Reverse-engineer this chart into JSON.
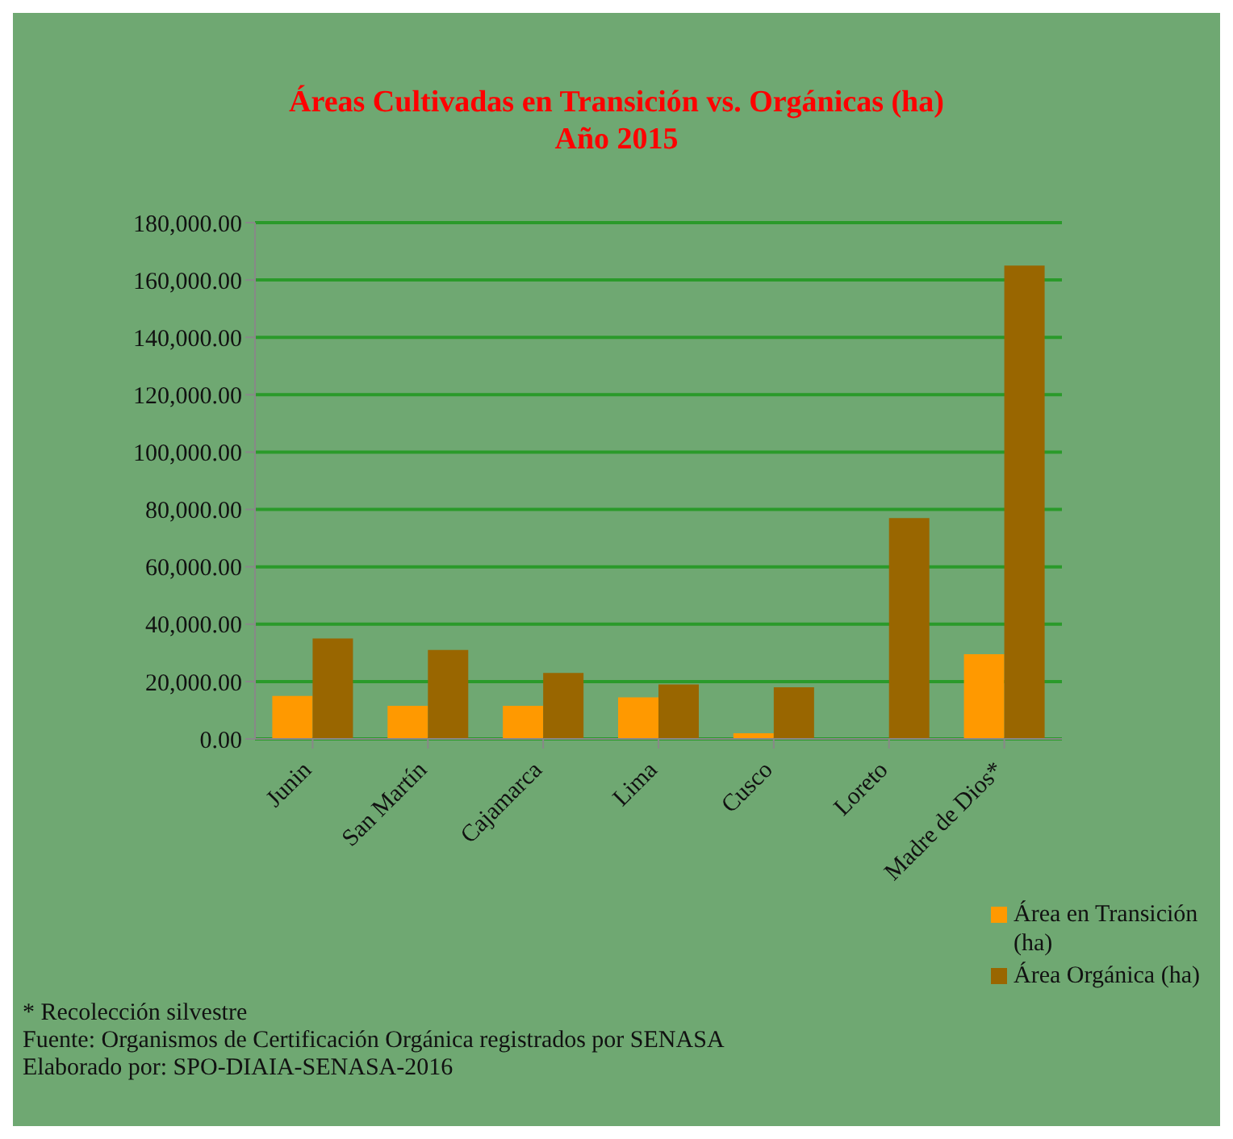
{
  "chart_data": {
    "type": "bar",
    "title": "Áreas Cultivadas en Transición  vs. Orgánicas (ha)\nAño 2015",
    "categories": [
      "Junin",
      "San Martín",
      "Cajamarca",
      "Lima",
      "Cusco",
      "Loreto",
      "Madre de Dios*"
    ],
    "series": [
      {
        "name": "Área en Transición (ha)",
        "color": "#ff9900",
        "values": [
          15000,
          11500,
          11500,
          14500,
          2000,
          null,
          29500
        ]
      },
      {
        "name": "Área Orgánica (ha)",
        "color": "#996600",
        "values": [
          35000,
          31000,
          23000,
          19000,
          18000,
          77000,
          165000
        ]
      }
    ],
    "ylim": [
      0,
      180000
    ],
    "yticks": [
      {
        "value": 0,
        "label": "0.00"
      },
      {
        "value": 20000,
        "label": "20,000.00"
      },
      {
        "value": 40000,
        "label": "40,000.00"
      },
      {
        "value": 60000,
        "label": "60,000.00"
      },
      {
        "value": 80000,
        "label": "80,000.00"
      },
      {
        "value": 100000,
        "label": "100,000.00"
      },
      {
        "value": 120000,
        "label": "120,000.00"
      },
      {
        "value": 140000,
        "label": "140,000.00"
      },
      {
        "value": 160000,
        "label": "160,000.00"
      },
      {
        "value": 180000,
        "label": "180,000.00"
      }
    ],
    "grid": "y",
    "legend": "bottom right",
    "annotations": [
      "* Recolección silvestre",
      "Fuente: Organismos de Certificación Orgánica registrados por SENASA",
      "Elaborado por: SPO-DIAIA-SENASA-2016"
    ]
  }
}
